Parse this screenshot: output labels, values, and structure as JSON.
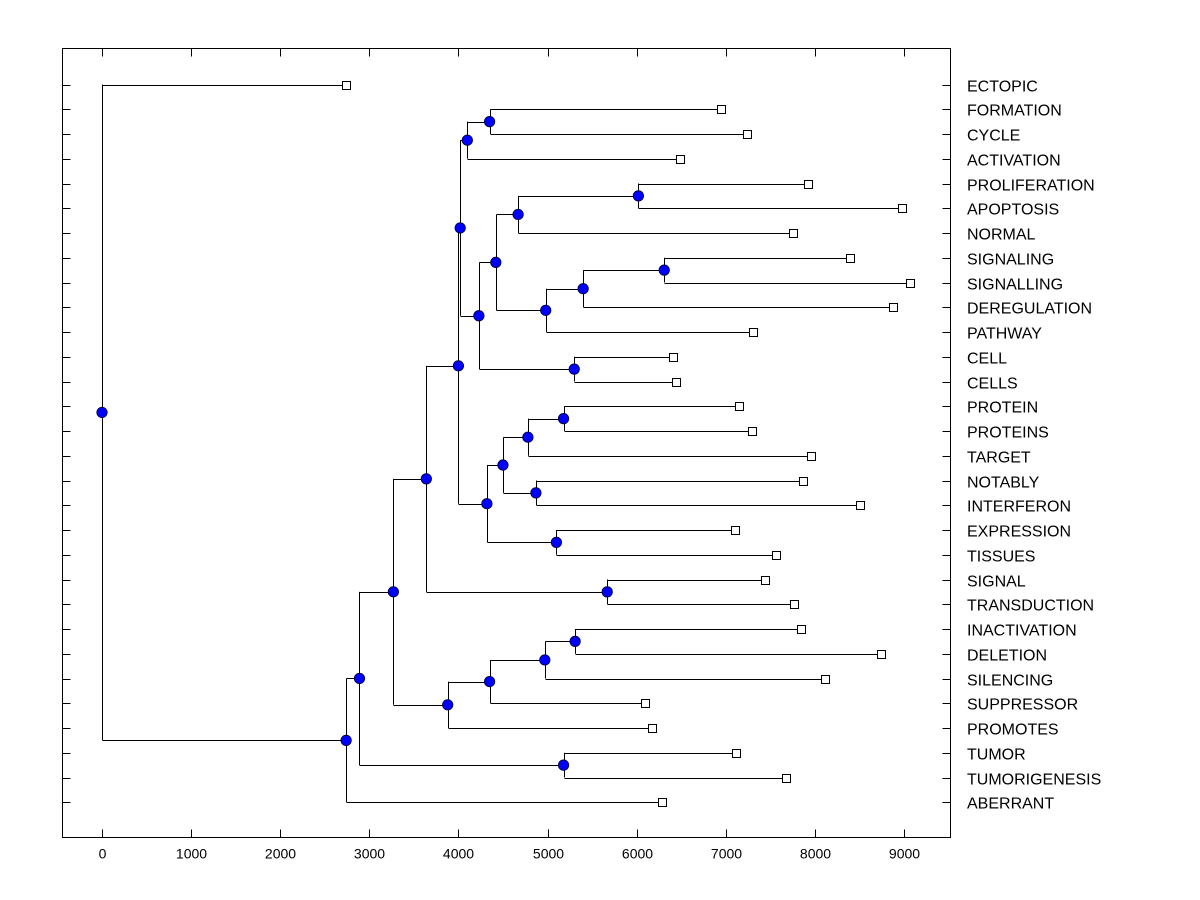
{
  "chart_data": {
    "type": "dendrogram",
    "title": "",
    "xlabel": "",
    "ylabel": "",
    "xlim": [
      -450,
      9500
    ],
    "xticks": [
      0,
      1000,
      2000,
      3000,
      4000,
      5000,
      6000,
      7000,
      8000,
      9000
    ],
    "grid": false,
    "colors": {
      "node": "#0000ff",
      "line": "#000000",
      "leaf_fill": "#ffffff"
    },
    "leaves": [
      {
        "label": "ECTOPIC",
        "value": 2740
      },
      {
        "label": "FORMATION",
        "value": 6950
      },
      {
        "label": "CYCLE",
        "value": 7240
      },
      {
        "label": "ACTIVATION",
        "value": 6490
      },
      {
        "label": "PROLIFERATION",
        "value": 7920
      },
      {
        "label": "APOPTOSIS",
        "value": 8980
      },
      {
        "label": "NORMAL",
        "value": 7760
      },
      {
        "label": "SIGNALING",
        "value": 8400
      },
      {
        "label": "SIGNALLING",
        "value": 9070
      },
      {
        "label": "DEREGULATION",
        "value": 8880
      },
      {
        "label": "PATHWAY",
        "value": 7310
      },
      {
        "label": "CELL",
        "value": 6410
      },
      {
        "label": "CELLS",
        "value": 6440
      },
      {
        "label": "PROTEIN",
        "value": 7150
      },
      {
        "label": "PROTEINS",
        "value": 7300
      },
      {
        "label": "TARGET",
        "value": 7960
      },
      {
        "label": "NOTABLY",
        "value": 7870
      },
      {
        "label": "INTERFERON",
        "value": 8510
      },
      {
        "label": "EXPRESSION",
        "value": 7100
      },
      {
        "label": "TISSUES",
        "value": 7560
      },
      {
        "label": "SIGNAL",
        "value": 7440
      },
      {
        "label": "TRANSDUCTION",
        "value": 7770
      },
      {
        "label": "INACTIVATION",
        "value": 7850
      },
      {
        "label": "DELETION",
        "value": 8740
      },
      {
        "label": "SILENCING",
        "value": 8110
      },
      {
        "label": "SUPPRESSOR",
        "value": 6090
      },
      {
        "label": "PROMOTES",
        "value": 6170
      },
      {
        "label": "TUMOR",
        "value": 7120
      },
      {
        "label": "TUMORIGENESIS",
        "value": 7680
      },
      {
        "label": "ABERRANT",
        "value": 6290
      }
    ],
    "tree": {
      "value": 0,
      "children": [
        {
          "leaf": 0
        },
        {
          "value": 2740,
          "children": [
            {
              "value": 2890,
              "children": [
                {
                  "value": 3270,
                  "children": [
                    {
                      "value": 3640,
                      "children": [
                        {
                          "value": 4000,
                          "children": [
                            {
                              "value": 4020,
                              "children": [
                                {
                                  "value": 4100,
                                  "children": [
                                    {
                                      "value": 4350,
                                      "children": [
                                        {
                                          "leaf": 1
                                        },
                                        {
                                          "leaf": 2
                                        }
                                      ]
                                    },
                                    {
                                      "leaf": 3
                                    }
                                  ]
                                },
                                {
                                  "value": 4230,
                                  "children": [
                                    {
                                      "value": 4420,
                                      "children": [
                                        {
                                          "value": 4670,
                                          "children": [
                                            {
                                              "value": 6020,
                                              "children": [
                                                {
                                                  "leaf": 4
                                                },
                                                {
                                                  "leaf": 5
                                                }
                                              ]
                                            },
                                            {
                                              "leaf": 6
                                            }
                                          ]
                                        },
                                        {
                                          "value": 4980,
                                          "children": [
                                            {
                                              "value": 5400,
                                              "children": [
                                                {
                                                  "value": 6310,
                                                  "children": [
                                                    {
                                                      "leaf": 7
                                                    },
                                                    {
                                                      "leaf": 8
                                                    }
                                                  ]
                                                },
                                                {
                                                  "leaf": 9
                                                }
                                              ]
                                            },
                                            {
                                              "leaf": 10
                                            }
                                          ]
                                        }
                                      ]
                                    },
                                    {
                                      "value": 5300,
                                      "children": [
                                        {
                                          "leaf": 11
                                        },
                                        {
                                          "leaf": 12
                                        }
                                      ]
                                    }
                                  ]
                                }
                              ]
                            },
                            {
                              "value": 4320,
                              "children": [
                                {
                                  "value": 4500,
                                  "children": [
                                    {
                                      "value": 4780,
                                      "children": [
                                        {
                                          "value": 5180,
                                          "children": [
                                            {
                                              "leaf": 13
                                            },
                                            {
                                              "leaf": 14
                                            }
                                          ]
                                        },
                                        {
                                          "leaf": 15
                                        }
                                      ]
                                    },
                                    {
                                      "value": 4870,
                                      "children": [
                                        {
                                          "leaf": 16
                                        },
                                        {
                                          "leaf": 17
                                        }
                                      ]
                                    }
                                  ]
                                },
                                {
                                  "value": 5100,
                                  "children": [
                                    {
                                      "leaf": 18
                                    },
                                    {
                                      "leaf": 19
                                    }
                                  ]
                                }
                              ]
                            }
                          ]
                        },
                        {
                          "value": 5670,
                          "children": [
                            {
                              "leaf": 20
                            },
                            {
                              "leaf": 21
                            }
                          ]
                        }
                      ]
                    },
                    {
                      "value": 3880,
                      "children": [
                        {
                          "value": 4350,
                          "children": [
                            {
                              "value": 4970,
                              "children": [
                                {
                                  "value": 5310,
                                  "children": [
                                    {
                                      "leaf": 22
                                    },
                                    {
                                      "leaf": 23
                                    }
                                  ]
                                },
                                {
                                  "leaf": 24
                                }
                              ]
                            },
                            {
                              "leaf": 25
                            }
                          ]
                        },
                        {
                          "leaf": 26
                        }
                      ]
                    }
                  ]
                },
                {
                  "value": 5180,
                  "children": [
                    {
                      "leaf": 27
                    },
                    {
                      "leaf": 28
                    }
                  ]
                }
              ]
            },
            {
              "leaf": 29
            }
          ]
        }
      ]
    }
  }
}
